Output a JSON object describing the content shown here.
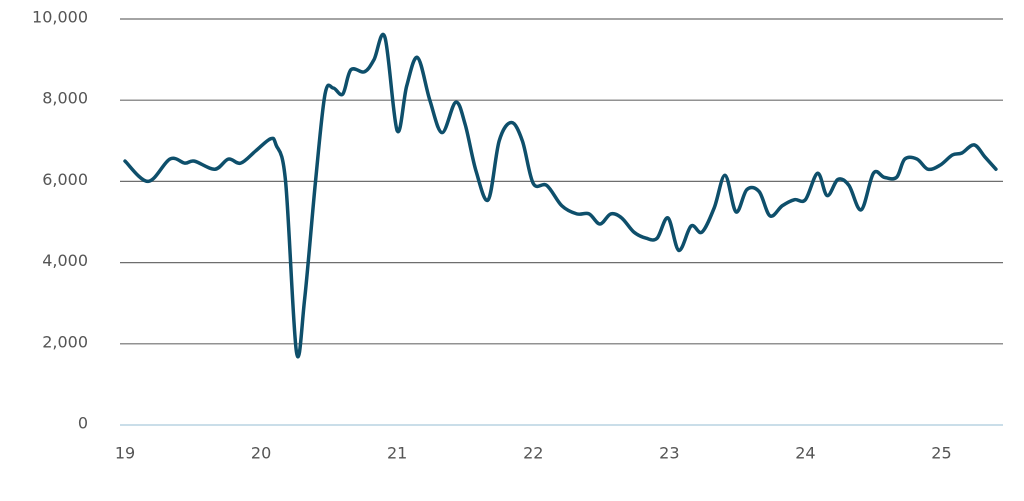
{
  "chart_data": {
    "type": "line",
    "x": [
      19.0,
      19.17,
      19.33,
      19.44,
      19.51,
      19.66,
      19.76,
      19.85,
      19.96,
      20.07,
      20.11,
      20.18,
      20.26,
      20.32,
      20.4,
      20.47,
      20.53,
      20.6,
      20.66,
      20.76,
      20.83,
      20.91,
      21.0,
      21.07,
      21.15,
      21.24,
      21.33,
      21.43,
      21.5,
      21.58,
      21.67,
      21.75,
      21.84,
      21.92,
      22.0,
      22.1,
      22.21,
      22.32,
      22.41,
      22.49,
      22.57,
      22.65,
      22.74,
      22.83,
      22.91,
      22.99,
      23.07,
      23.16,
      23.24,
      23.33,
      23.41,
      23.49,
      23.57,
      23.66,
      23.74,
      23.83,
      23.92,
      24.0,
      24.09,
      24.16,
      24.24,
      24.32,
      24.41,
      24.5,
      24.58,
      24.67,
      24.73,
      24.82,
      24.9,
      24.99,
      25.08,
      25.15,
      25.24,
      25.32,
      25.4
    ],
    "series": [
      {
        "color": "#0e4f6b",
        "values": [
          6500,
          6000,
          6550,
          6450,
          6500,
          6300,
          6550,
          6450,
          6750,
          7050,
          6900,
          6000,
          1800,
          3100,
          6000,
          8150,
          8300,
          8150,
          8750,
          8700,
          9000,
          9550,
          7250,
          8350,
          9050,
          8000,
          7200,
          7950,
          7400,
          6250,
          5550,
          7000,
          7450,
          7000,
          5950,
          5900,
          5400,
          5200,
          5200,
          4950,
          5200,
          5100,
          4750,
          4600,
          4600,
          5100,
          4300,
          4900,
          4750,
          5350,
          6150,
          5250,
          5800,
          5750,
          5150,
          5400,
          5550,
          5550,
          6200,
          5650,
          6050,
          5900,
          5300,
          6200,
          6100,
          6100,
          6550,
          6550,
          6300,
          6400,
          6650,
          6700,
          6900,
          6600,
          6300
        ]
      }
    ],
    "xlim": [
      19,
      25.43
    ],
    "xticks": [
      19,
      20,
      21,
      22,
      23,
      24,
      25
    ],
    "ylim": [
      0,
      10000
    ],
    "yticks": [
      0,
      {
        "value": 2000,
        "label": "2,000"
      },
      {
        "value": 4000,
        "label": "4,000"
      },
      {
        "value": 6000,
        "label": "6,000"
      },
      {
        "value": 8000,
        "label": "8,000"
      },
      {
        "value": 10000,
        "label": "10,000"
      }
    ],
    "grid": true
  }
}
